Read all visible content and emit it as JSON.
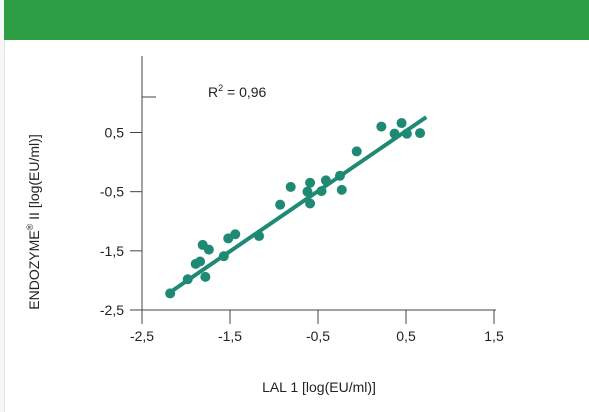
{
  "colors": {
    "banner": "#2e9e45",
    "series": "#1e8a74",
    "axis": "#444444"
  },
  "annotation": {
    "r_prefix": "R",
    "r_sup": "2",
    "r_value": " = 0,96"
  },
  "chart_data": {
    "type": "scatter",
    "xlabel": "LAL 1 [log(EU/ml)]",
    "ylabel_main": "ENDOZYME",
    "ylabel_sup": "®",
    "ylabel_rest": " II [log(EU/ml)]",
    "xlim": [
      -2.5,
      1.5
    ],
    "ylim": [
      -2.5,
      1.1
    ],
    "x_ticks": [
      {
        "value": -2.5,
        "label": "-2,5"
      },
      {
        "value": -1.5,
        "label": "-1,5"
      },
      {
        "value": -0.5,
        "label": "-0,5"
      },
      {
        "value": 0.5,
        "label": "0,5"
      },
      {
        "value": 1.5,
        "label": "1,5"
      }
    ],
    "y_ticks": [
      {
        "value": -2.5,
        "label": "-2,5"
      },
      {
        "value": -1.5,
        "label": "-1,5"
      },
      {
        "value": -0.5,
        "label": "-0,5"
      },
      {
        "value": 0.5,
        "label": "0,5"
      }
    ],
    "grid": false,
    "points": [
      {
        "x": -2.18,
        "y": -2.22
      },
      {
        "x": -1.98,
        "y": -1.98
      },
      {
        "x": -1.89,
        "y": -1.72
      },
      {
        "x": -1.84,
        "y": -1.68
      },
      {
        "x": -1.81,
        "y": -1.4
      },
      {
        "x": -1.78,
        "y": -1.94
      },
      {
        "x": -1.74,
        "y": -1.48
      },
      {
        "x": -1.57,
        "y": -1.59
      },
      {
        "x": -1.52,
        "y": -1.29
      },
      {
        "x": -1.44,
        "y": -1.22
      },
      {
        "x": -1.17,
        "y": -1.25
      },
      {
        "x": -0.93,
        "y": -0.72
      },
      {
        "x": -0.81,
        "y": -0.42
      },
      {
        "x": -0.62,
        "y": -0.5
      },
      {
        "x": -0.59,
        "y": -0.35
      },
      {
        "x": -0.59,
        "y": -0.7
      },
      {
        "x": -0.46,
        "y": -0.49
      },
      {
        "x": -0.41,
        "y": -0.31
      },
      {
        "x": -0.25,
        "y": -0.23
      },
      {
        "x": -0.23,
        "y": -0.47
      },
      {
        "x": -0.06,
        "y": 0.18
      },
      {
        "x": 0.22,
        "y": 0.6
      },
      {
        "x": 0.37,
        "y": 0.48
      },
      {
        "x": 0.45,
        "y": 0.66
      },
      {
        "x": 0.51,
        "y": 0.48
      },
      {
        "x": 0.66,
        "y": 0.49
      }
    ],
    "trendline": {
      "x": [
        -2.18,
        0.73
      ],
      "y": [
        -2.2,
        0.76
      ]
    }
  }
}
